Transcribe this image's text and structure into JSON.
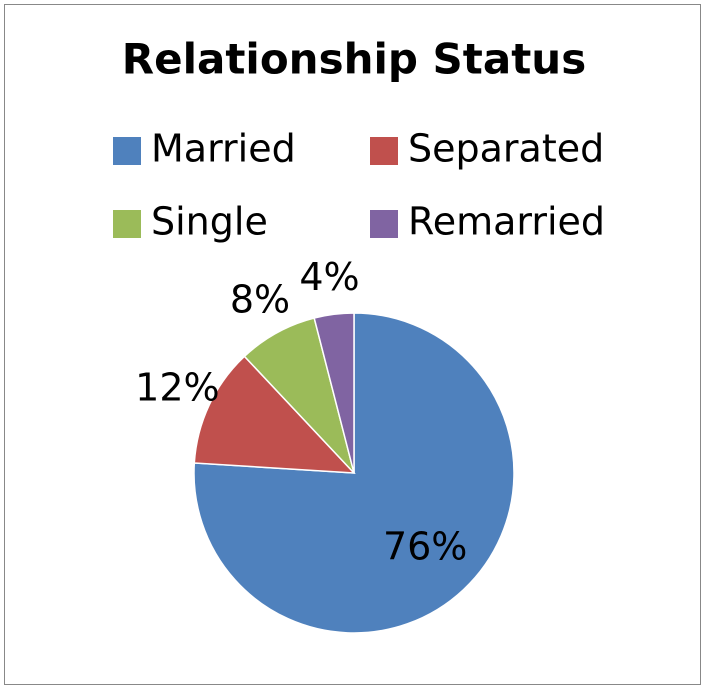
{
  "chart_data": {
    "type": "pie",
    "title": "Relationship Status",
    "categories": [
      "Married",
      "Separated",
      "Single",
      "Remarried"
    ],
    "values": [
      76,
      12,
      8,
      4
    ],
    "value_labels": [
      "76%",
      "12%",
      "8%",
      "4%"
    ],
    "colors": [
      "#4f81bd",
      "#c0504d",
      "#9bbb59",
      "#8064a2"
    ],
    "legend": "top"
  }
}
